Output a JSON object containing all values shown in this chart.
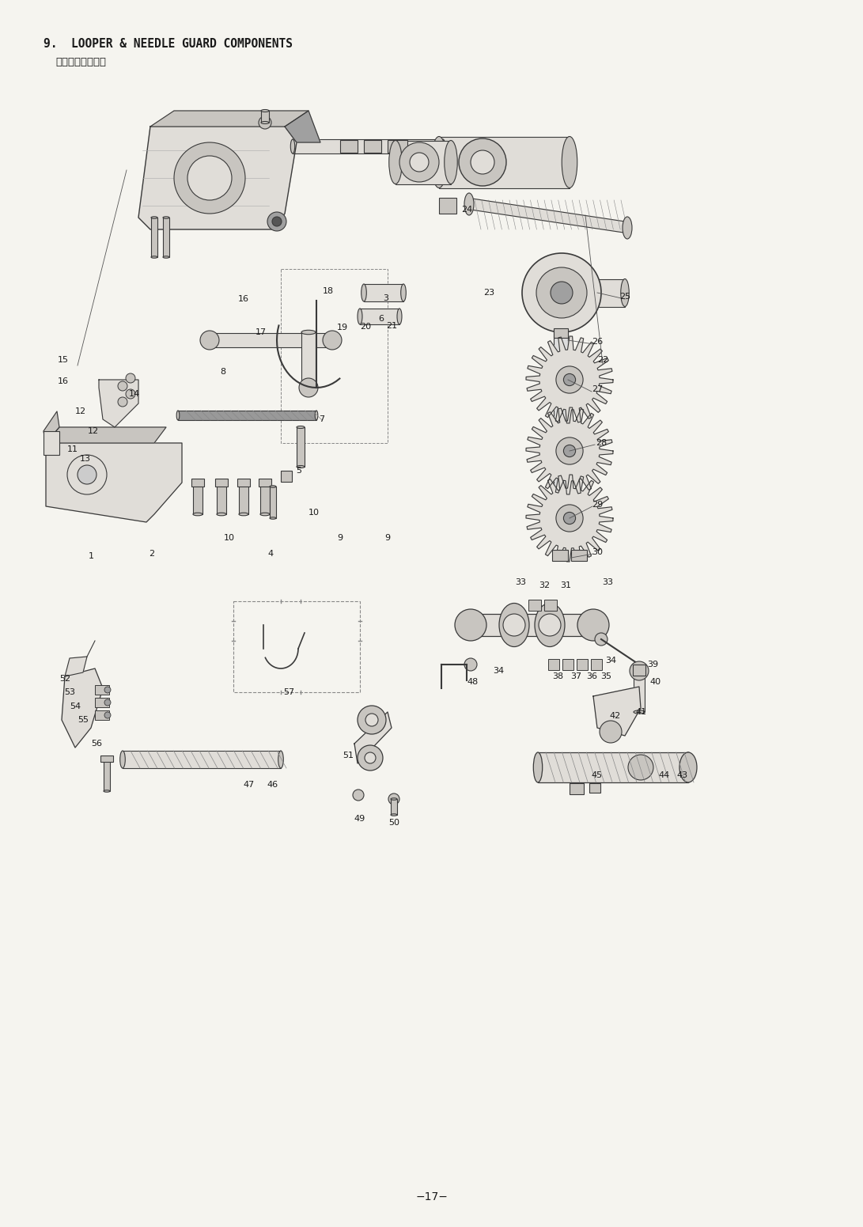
{
  "title_line1": "9.  LOOPER & NEEDLE GUARD COMPONENTS",
  "title_line2": "ルーパ・针受関係",
  "page_number": "−17−",
  "bg_color": "#f5f4ef",
  "text_color": "#1a1a1a",
  "title_fontsize": 10.5,
  "page_fontsize": 10,
  "figwidth": 10.91,
  "figheight": 15.51,
  "dpi": 100,
  "draw_color": "#3a3a3a",
  "light_fill": "#e0ddd8",
  "mid_fill": "#c8c5c0",
  "dark_fill": "#a0a0a0"
}
